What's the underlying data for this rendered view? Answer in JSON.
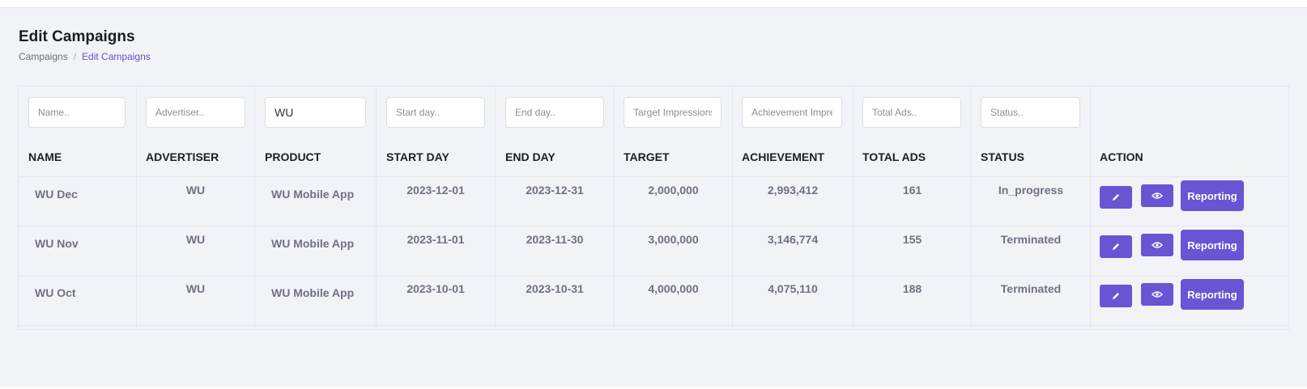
{
  "page": {
    "title": "Edit Campaigns",
    "breadcrumb": [
      "Campaigns",
      "Edit Campaigns"
    ],
    "breadcrumb_separator": "/"
  },
  "filters": {
    "name_placeholder": "Name..",
    "advertiser_placeholder": "Advertiser..",
    "product_value": "WU",
    "start_placeholder": "Start day..",
    "end_placeholder": "End day..",
    "target_placeholder": "Target Impressions..",
    "achievement_placeholder": "Achievement Impressions..",
    "total_ads_placeholder": "Total Ads..",
    "status_placeholder": "Status.."
  },
  "columns": [
    "NAME",
    "ADVERTISER",
    "PRODUCT",
    "START DAY",
    "END DAY",
    "TARGET",
    "ACHIEVEMENT",
    "TOTAL ADS",
    "STATUS",
    "ACTION"
  ],
  "rows": [
    {
      "name": "WU Dec",
      "advertiser": "WU",
      "product": "WU Mobile App",
      "start": "2023-12-01",
      "end": "2023-12-31",
      "target": "2,000,000",
      "achievement": "2,993,412",
      "total_ads": "161",
      "status": "In_progress"
    },
    {
      "name": "WU Nov",
      "advertiser": "WU",
      "product": "WU Mobile App",
      "start": "2023-11-01",
      "end": "2023-11-30",
      "target": "3,000,000",
      "achievement": "3,146,774",
      "total_ads": "155",
      "status": "Terminated"
    },
    {
      "name": "WU Oct",
      "advertiser": "WU",
      "product": "WU Mobile App",
      "start": "2023-10-01",
      "end": "2023-10-31",
      "target": "4,000,000",
      "achievement": "4,075,110",
      "total_ads": "188",
      "status": "Terminated"
    }
  ],
  "actions": {
    "edit_icon": "pencil-icon",
    "view_icon": "eye-icon",
    "reporting_label": "Reporting"
  },
  "colors": {
    "accent": "#6656d4",
    "background": "#f2f3f7",
    "breadcrumb_active": "#5a55c4",
    "cell_text": "#6d7283"
  }
}
